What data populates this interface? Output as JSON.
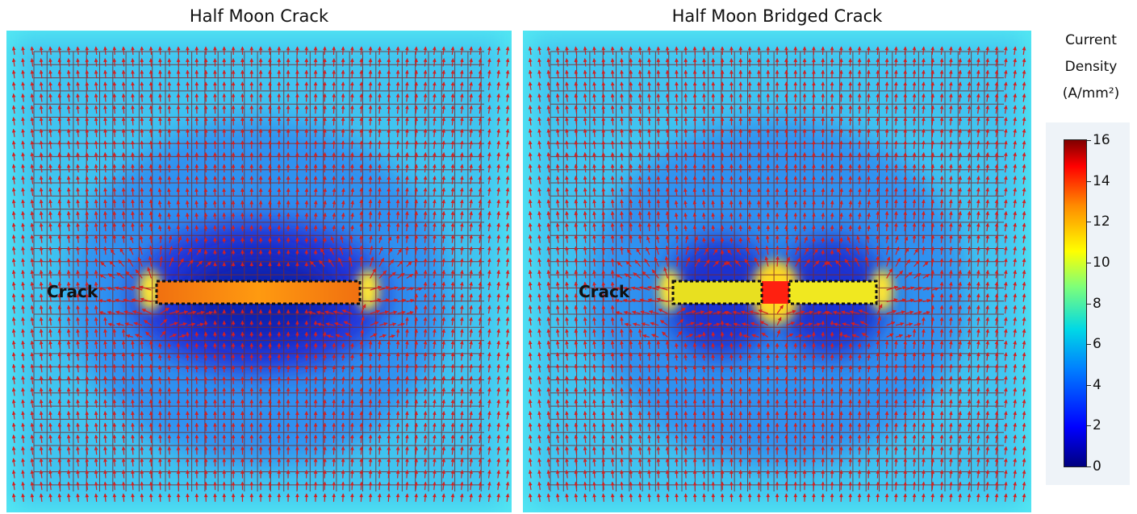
{
  "panels": [
    {
      "title": "Half Moon Crack",
      "crack_label": "Crack",
      "bridged": false
    },
    {
      "title": "Half Moon Bridged Crack",
      "crack_label": "Crack",
      "bridged": true
    }
  ],
  "colorbar": {
    "title_line1": "Current",
    "title_line2": "Density",
    "title_line3": "(A/mm²)",
    "min": 0,
    "max": 16,
    "ticks": [
      "16",
      "14",
      "12",
      "10",
      "8",
      "6",
      "4",
      "2",
      "0"
    ]
  },
  "colors": {
    "background_field": "#53e8f2",
    "grid_lines": "#7a2a2a",
    "arrows": "#d42020",
    "crack_outline": "#111111"
  }
}
